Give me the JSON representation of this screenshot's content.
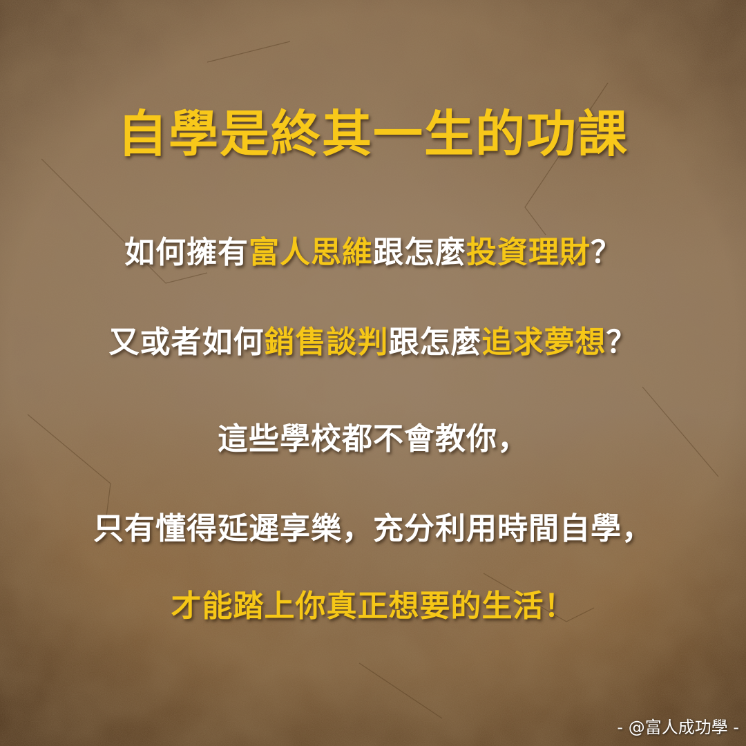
{
  "title": "自學是終其一生的功課",
  "line1": {
    "a": "如何擁有",
    "b": "富人思維",
    "c": "跟怎麼",
    "d": "投資理財",
    "e": "？"
  },
  "line2": {
    "a": "又或者如何",
    "b": "銷售談判",
    "c": "跟怎麼",
    "d": "追求夢想",
    "e": "？"
  },
  "line3": "這些學校都不會教你，",
  "line4": "只有懂得延遲享樂，充分利用時間自學，",
  "line5": "才能踏上你真正想要的生活！",
  "credit": "- @富人成功學 -",
  "colors": {
    "highlight": "#f6c717",
    "text": "#ffffff",
    "background": "#8f7459"
  }
}
